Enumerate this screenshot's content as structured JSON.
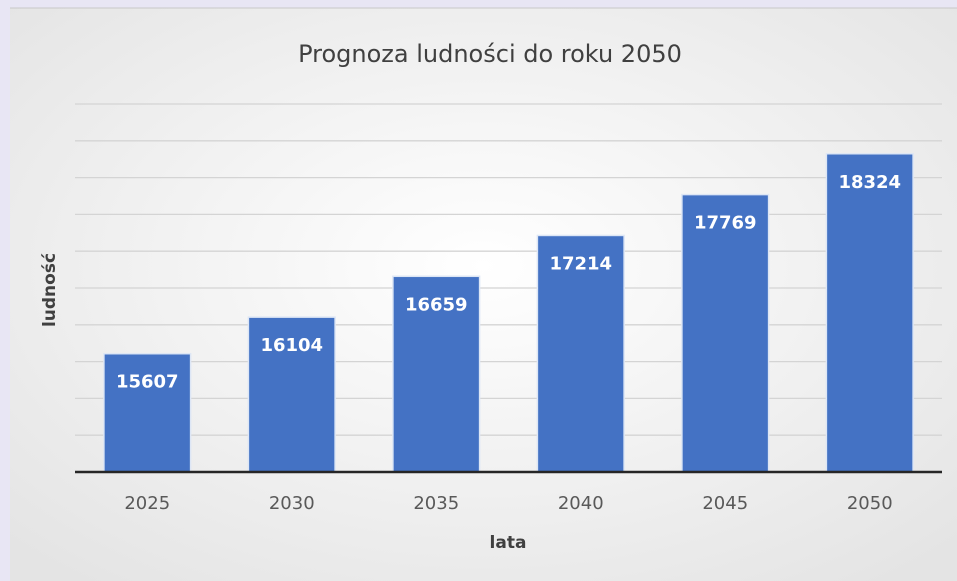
{
  "chart_data": {
    "type": "bar",
    "title": "Prognoza ludności do roku 2050",
    "x_label": "lata",
    "y_label": "ludność",
    "categories": [
      "2025",
      "2030",
      "2035",
      "2040",
      "2045",
      "2050"
    ],
    "values": [
      15607,
      16104,
      16659,
      17214,
      17769,
      18324
    ],
    "color": "#4472c4",
    "ylim": [
      14000,
      19000
    ],
    "yticks": [
      14000,
      14500,
      15000,
      15500,
      16000,
      16500,
      17000,
      17500,
      18000,
      18500,
      19000
    ],
    "grid": true
  }
}
